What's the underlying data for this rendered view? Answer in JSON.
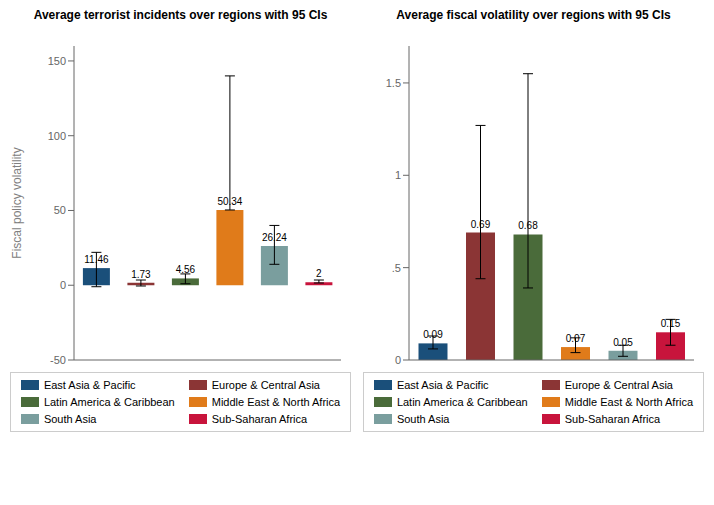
{
  "chart_data": [
    {
      "type": "bar",
      "title": "Average terrorist incidents over regions with 95 CIs",
      "y_label": "Fiscal policy volatility",
      "categories": [
        "East Asia & Pacific",
        "Europe & Central Asia",
        "Latin America & Caribbean",
        "Middle East & North Africa",
        "South Asia",
        "Sub-Saharan Africa"
      ],
      "values": [
        11.46,
        1.73,
        4.56,
        50.34,
        26.24,
        2.0
      ],
      "error_lo": [
        12.46,
        2.23,
        3.56,
        0.0,
        12.24,
        0.5
      ],
      "error_hi": [
        10.54,
        1.77,
        3.0,
        89.66,
        13.76,
        1.5
      ],
      "colors": [
        "#1a4f7a",
        "#8b3535",
        "#4a6b3a",
        "#e07b1a",
        "#7a9e9e",
        "#c8143c"
      ],
      "ylim": [
        -50,
        160
      ],
      "yticks": [
        -50,
        0,
        50,
        100,
        150
      ],
      "grid": false,
      "legend": "bottom",
      "data_labels": true,
      "tick_labels": "y"
    },
    {
      "type": "bar",
      "title": "Average fiscal volatility over regions with 95 CIs",
      "categories": [
        "East Asia & Pacific",
        "Europe & Central Asia",
        "Latin America & Caribbean",
        "Middle East & North Africa",
        "South Asia",
        "Sub-Saharan Africa"
      ],
      "values": [
        0.09,
        0.69,
        0.68,
        0.07,
        0.05,
        0.15
      ],
      "error_lo": [
        0.03,
        0.25,
        0.29,
        0.03,
        0.03,
        0.07
      ],
      "error_hi": [
        0.04,
        0.58,
        0.87,
        0.05,
        0.03,
        0.07
      ],
      "colors": [
        "#1a4f7a",
        "#8b3535",
        "#4a6b3a",
        "#e07b1a",
        "#7a9e9e",
        "#c8143c"
      ],
      "ylim": [
        0.0,
        1.7
      ],
      "yticks": [
        0,
        {
          "value": 0.5,
          "label": ".5"
        },
        1,
        1.5
      ],
      "grid": false,
      "legend": "bottom",
      "data_labels": true,
      "tick_labels": "y"
    }
  ]
}
